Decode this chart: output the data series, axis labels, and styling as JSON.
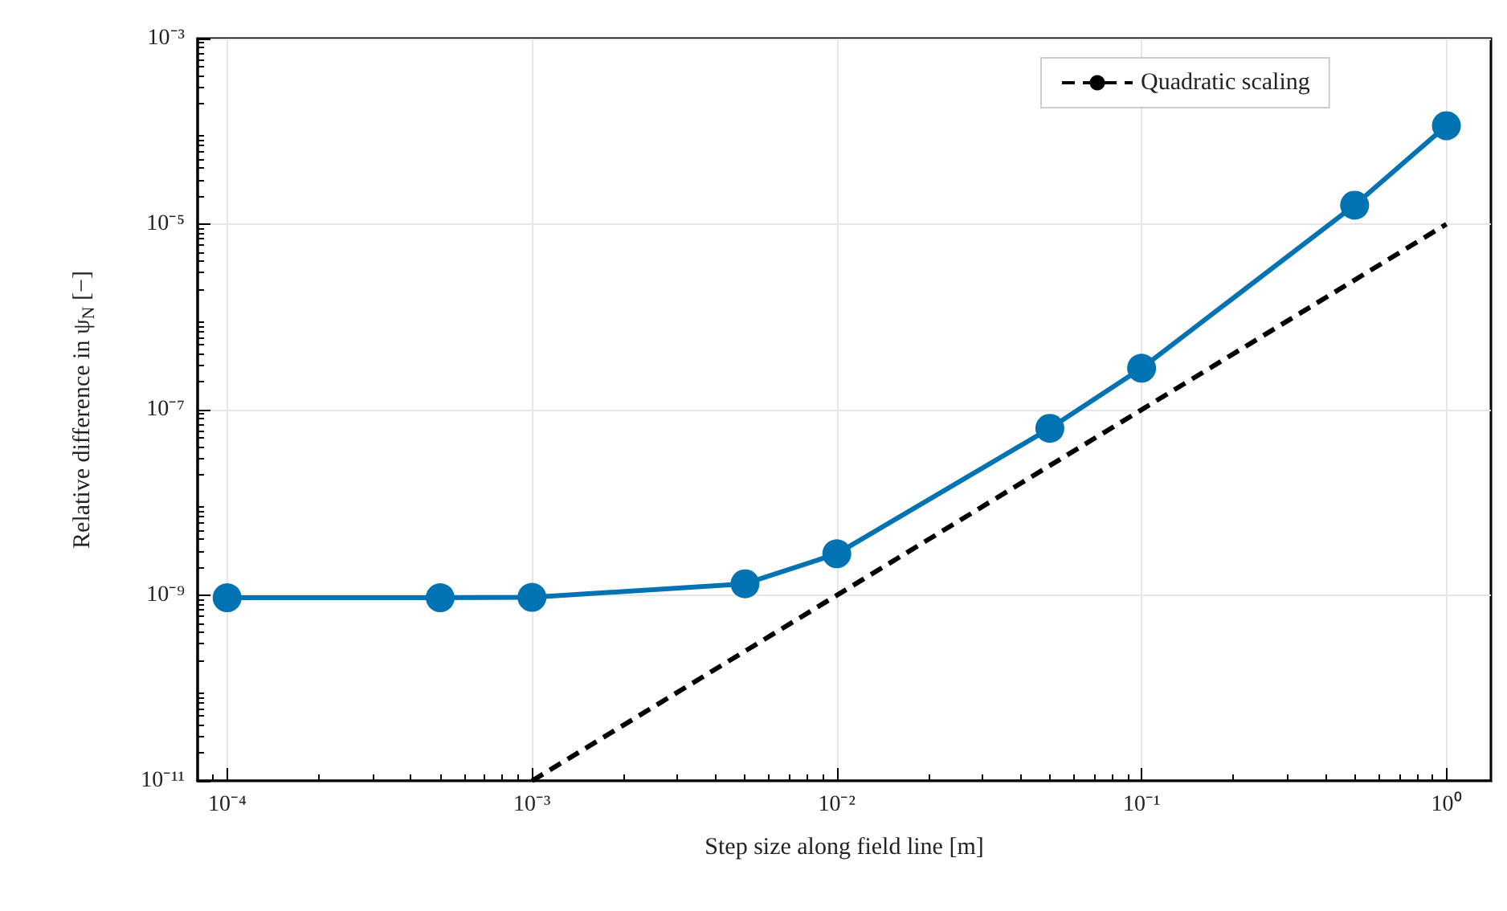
{
  "chart_data": {
    "type": "line",
    "xlabel": "Step size along field line [m]",
    "ylabel": "Relative difference in ψ$_{N}$ [−]",
    "log": "xy",
    "grid": true,
    "legend": "top right",
    "marker": "circle",
    "xlim": [
      8e-05,
      1.4
    ],
    "ylim": [
      1e-11,
      0.001
    ],
    "xticks": [
      {
        "value": 0.0001,
        "label": "10⁻⁴"
      },
      {
        "value": 0.001,
        "label": "10⁻³"
      },
      {
        "value": 0.01,
        "label": "10⁻²"
      },
      {
        "value": 0.1,
        "label": "10⁻¹"
      },
      {
        "value": 1,
        "label": "10⁰"
      }
    ],
    "yticks": [
      {
        "value": 1e-11,
        "label": "10⁻¹¹"
      },
      {
        "value": 1e-09,
        "label": "10⁻⁹"
      },
      {
        "value": 1e-07,
        "label": "10⁻⁷"
      },
      {
        "value": 1e-05,
        "label": "10⁻⁵"
      },
      {
        "value": 0.001,
        "label": "10⁻³"
      }
    ],
    "series": [
      {
        "color": "#0173b2",
        "x": [
          0.0001,
          0.0005,
          0.001,
          0.005,
          0.01,
          0.05,
          0.1,
          0.5,
          1
        ],
        "values": [
          9.4e-10,
          9.4e-10,
          9.5e-10,
          1.33e-09,
          2.8e-09,
          6.3e-08,
          2.8e-07,
          1.6e-05,
          0.000115
        ]
      },
      {
        "name": "Quadratic scaling",
        "color": "#000000",
        "line_style": "dashed",
        "marker": "none",
        "x": [
          0.001,
          1
        ],
        "values": [
          1e-11,
          1e-05
        ]
      }
    ]
  }
}
